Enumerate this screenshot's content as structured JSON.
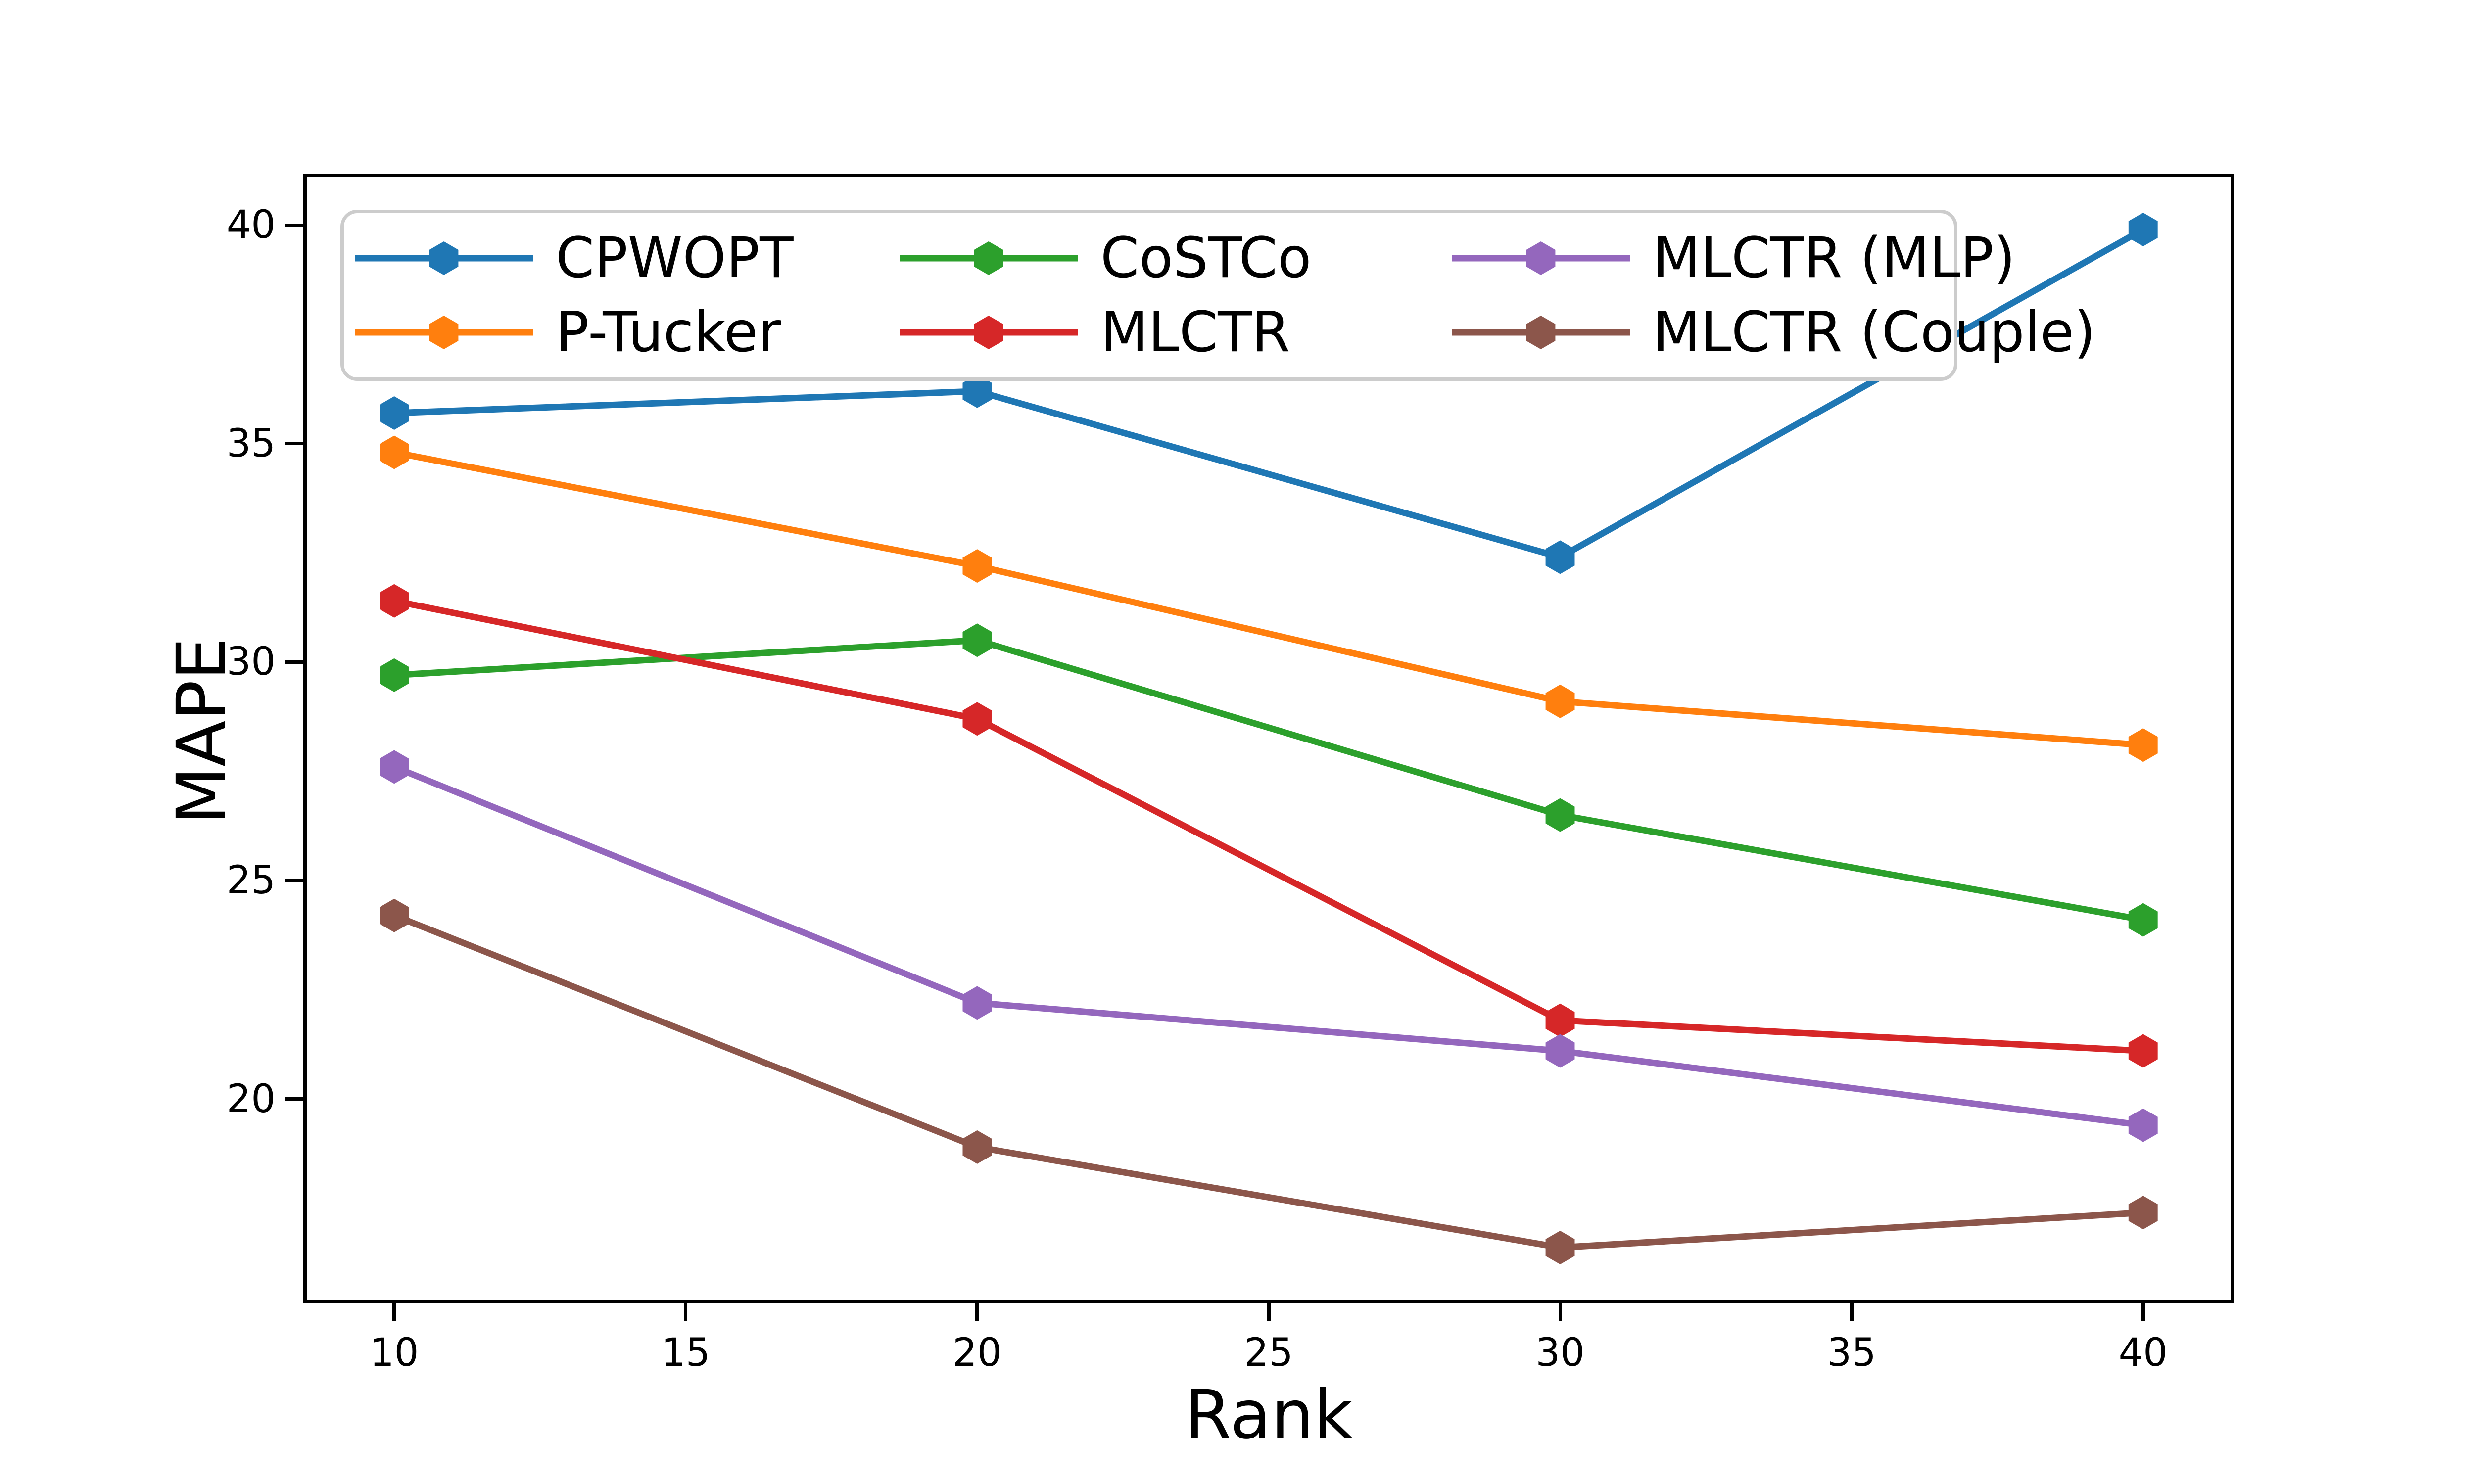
{
  "chart_data": {
    "type": "line",
    "title": "",
    "xlabel": "Rank",
    "ylabel": "MAPE",
    "x": [
      10,
      20,
      30,
      40
    ],
    "x_tick_labels": [
      "10",
      "15",
      "20",
      "25",
      "30",
      "35",
      "40"
    ],
    "x_ticks": [
      10,
      15,
      20,
      25,
      30,
      35,
      40
    ],
    "y_tick_labels": [
      "20",
      "25",
      "30",
      "35",
      "40"
    ],
    "y_ticks": [
      20,
      25,
      30,
      35,
      40
    ],
    "xlim": [
      8.5,
      41.5
    ],
    "ylim": [
      15.4,
      41.1
    ],
    "grid": false,
    "marker": "hexagon",
    "legend_position": "upper-left-inside",
    "legend_columns": 3,
    "series": [
      {
        "name": "CPWOPT",
        "color": "#1f77b4",
        "values": [
          35.7,
          36.2,
          32.4,
          39.9
        ]
      },
      {
        "name": "P-Tucker",
        "color": "#ff7f0e",
        "values": [
          34.8,
          32.2,
          29.1,
          28.1
        ]
      },
      {
        "name": "CoSTCo",
        "color": "#2ca02c",
        "values": [
          29.7,
          30.5,
          26.5,
          24.1
        ]
      },
      {
        "name": "MLCTR",
        "color": "#d62728",
        "values": [
          31.4,
          28.7,
          21.8,
          21.1
        ]
      },
      {
        "name": "MLCTR (MLP)",
        "color": "#9467bd",
        "values": [
          27.6,
          22.2,
          21.1,
          19.4
        ]
      },
      {
        "name": "MLCTR (Couple)",
        "color": "#8c564b",
        "values": [
          24.2,
          18.9,
          16.6,
          17.4
        ]
      }
    ],
    "axis_color": "#000000",
    "background_color": "#ffffff",
    "legend_border_color": "#cccccc"
  }
}
